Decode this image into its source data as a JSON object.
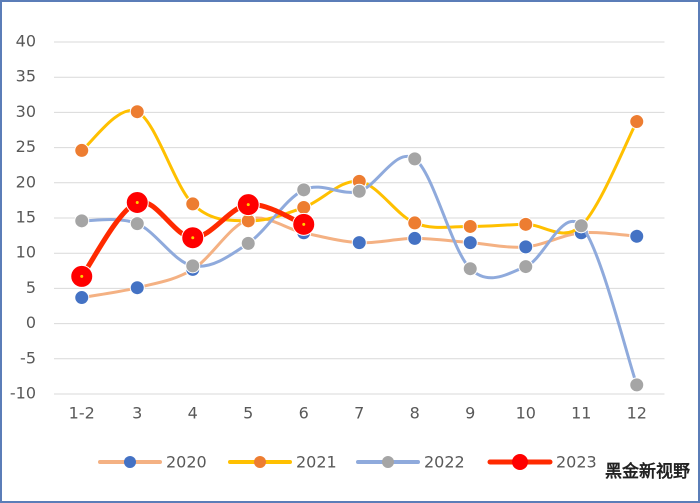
{
  "chart_data": {
    "type": "line",
    "smooth": true,
    "grid": true,
    "legend": "bottom",
    "categories": [
      "1-2",
      "3",
      "4",
      "5",
      "6",
      "7",
      "8",
      "9",
      "10",
      "11",
      "12"
    ],
    "ylim": [
      -10,
      40
    ],
    "yticks": [
      -10,
      -5,
      0,
      5,
      10,
      15,
      20,
      25,
      30,
      35,
      40
    ],
    "series": [
      {
        "name": "2020",
        "color": "#f4b183",
        "marker_color": "#4472c4",
        "values": [
          3.7,
          5.1,
          7.7,
          14.8,
          12.9,
          11.5,
          12.1,
          11.5,
          10.9,
          12.9,
          12.4
        ]
      },
      {
        "name": "2021",
        "color": "#ffc000",
        "marker_color": "#ed7d31",
        "values": [
          24.6,
          30.1,
          17.0,
          14.6,
          16.5,
          20.2,
          14.3,
          13.8,
          14.1,
          13.9,
          28.7
        ]
      },
      {
        "name": "2022",
        "color": "#8faadc",
        "marker_color": "#a5a5a5",
        "values": [
          14.6,
          14.2,
          8.2,
          11.4,
          19.0,
          18.8,
          23.4,
          7.8,
          8.1,
          13.9,
          -8.7
        ]
      },
      {
        "name": "2023",
        "color": "#ff2a00",
        "marker_color": "#ff0000",
        "values": [
          6.7,
          17.2,
          12.2,
          16.9,
          14.1,
          null,
          null,
          null,
          null,
          null,
          null
        ]
      }
    ],
    "watermark": "黑金新视野"
  }
}
